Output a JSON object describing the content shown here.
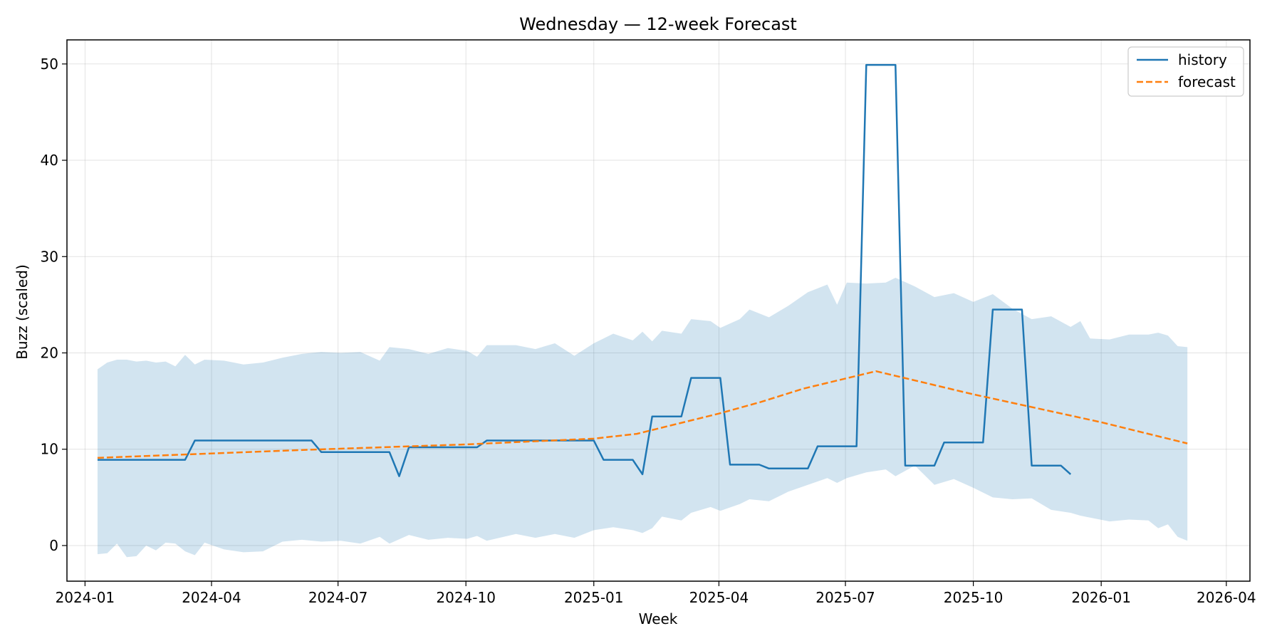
{
  "chart_data": {
    "type": "line",
    "title": "Wednesday — 12-week Forecast",
    "xlabel": "Week",
    "ylabel": "Buzz (scaled)",
    "x_axis": {
      "type": "date",
      "range": [
        "2023-12-19",
        "2026-04-18"
      ],
      "ticks": [
        "2024-01-01",
        "2024-04-01",
        "2024-07-01",
        "2024-10-01",
        "2025-01-01",
        "2025-04-01",
        "2025-07-01",
        "2025-10-01",
        "2026-01-01",
        "2026-04-01"
      ],
      "tick_labels": [
        "2024-01",
        "2024-04",
        "2024-07",
        "2024-10",
        "2025-01",
        "2025-04",
        "2025-07",
        "2025-10",
        "2026-01",
        "2026-04"
      ]
    },
    "y_axis": {
      "range": [
        -3.7,
        52.5
      ],
      "ticks": [
        0,
        10,
        20,
        30,
        40,
        50
      ],
      "tick_labels": [
        "0",
        "10",
        "20",
        "30",
        "40",
        "50"
      ]
    },
    "grid": true,
    "legend_position": "top-right",
    "series": [
      {
        "name": "history",
        "style": "solid",
        "color": "#1f77b4",
        "points": [
          {
            "x": "2024-01-10",
            "y": 8.9
          },
          {
            "x": "2024-03-13",
            "y": 8.9
          },
          {
            "x": "2024-03-20",
            "y": 10.9
          },
          {
            "x": "2024-06-12",
            "y": 10.9
          },
          {
            "x": "2024-06-19",
            "y": 9.7
          },
          {
            "x": "2024-08-07",
            "y": 9.7
          },
          {
            "x": "2024-08-14",
            "y": 7.2
          },
          {
            "x": "2024-08-21",
            "y": 10.2
          },
          {
            "x": "2024-10-09",
            "y": 10.2
          },
          {
            "x": "2024-10-16",
            "y": 10.9
          },
          {
            "x": "2025-01-01",
            "y": 10.9
          },
          {
            "x": "2025-01-08",
            "y": 8.9
          },
          {
            "x": "2025-01-29",
            "y": 8.9
          },
          {
            "x": "2025-02-05",
            "y": 7.4
          },
          {
            "x": "2025-02-12",
            "y": 13.4
          },
          {
            "x": "2025-03-05",
            "y": 13.4
          },
          {
            "x": "2025-03-12",
            "y": 17.4
          },
          {
            "x": "2025-04-02",
            "y": 17.4
          },
          {
            "x": "2025-04-09",
            "y": 8.4
          },
          {
            "x": "2025-04-30",
            "y": 8.4
          },
          {
            "x": "2025-05-07",
            "y": 8.0
          },
          {
            "x": "2025-06-04",
            "y": 8.0
          },
          {
            "x": "2025-06-11",
            "y": 10.3
          },
          {
            "x": "2025-07-09",
            "y": 10.3
          },
          {
            "x": "2025-07-16",
            "y": 49.9
          },
          {
            "x": "2025-08-06",
            "y": 49.9
          },
          {
            "x": "2025-08-13",
            "y": 8.3
          },
          {
            "x": "2025-09-03",
            "y": 8.3
          },
          {
            "x": "2025-09-10",
            "y": 10.7
          },
          {
            "x": "2025-10-08",
            "y": 10.7
          },
          {
            "x": "2025-10-15",
            "y": 24.5
          },
          {
            "x": "2025-11-05",
            "y": 24.5
          },
          {
            "x": "2025-11-12",
            "y": 8.3
          },
          {
            "x": "2025-12-03",
            "y": 8.3
          },
          {
            "x": "2025-12-10",
            "y": 7.4
          }
        ]
      },
      {
        "name": "forecast",
        "style": "dashed",
        "color": "#ff7f0e",
        "points": [
          {
            "x": "2024-01-10",
            "y": 9.1
          },
          {
            "x": "2024-06-01",
            "y": 9.9
          },
          {
            "x": "2024-10-01",
            "y": 10.5
          },
          {
            "x": "2025-01-01",
            "y": 11.1
          },
          {
            "x": "2025-02-01",
            "y": 11.6
          },
          {
            "x": "2025-03-01",
            "y": 12.6
          },
          {
            "x": "2025-04-01",
            "y": 13.7
          },
          {
            "x": "2025-05-01",
            "y": 14.9
          },
          {
            "x": "2025-06-01",
            "y": 16.3
          },
          {
            "x": "2025-07-23",
            "y": 18.1
          },
          {
            "x": "2025-10-01",
            "y": 15.7
          },
          {
            "x": "2026-01-01",
            "y": 12.8
          },
          {
            "x": "2026-03-04",
            "y": 10.6
          }
        ]
      }
    ],
    "band": {
      "color": "#1f77b4",
      "points": [
        {
          "x": "2024-01-10",
          "lo": -0.9,
          "hi": 18.3
        },
        {
          "x": "2024-01-17",
          "lo": -0.8,
          "hi": 19.0
        },
        {
          "x": "2024-01-24",
          "lo": 0.2,
          "hi": 19.3
        },
        {
          "x": "2024-01-31",
          "lo": -1.2,
          "hi": 19.3
        },
        {
          "x": "2024-02-07",
          "lo": -1.1,
          "hi": 19.1
        },
        {
          "x": "2024-02-14",
          "lo": 0.0,
          "hi": 19.2
        },
        {
          "x": "2024-02-21",
          "lo": -0.5,
          "hi": 19.0
        },
        {
          "x": "2024-02-28",
          "lo": 0.3,
          "hi": 19.1
        },
        {
          "x": "2024-03-06",
          "lo": 0.2,
          "hi": 18.6
        },
        {
          "x": "2024-03-13",
          "lo": -0.6,
          "hi": 19.8
        },
        {
          "x": "2024-03-20",
          "lo": -1.0,
          "hi": 18.8
        },
        {
          "x": "2024-03-27",
          "lo": 0.3,
          "hi": 19.3
        },
        {
          "x": "2024-04-10",
          "lo": -0.4,
          "hi": 19.2
        },
        {
          "x": "2024-04-24",
          "lo": -0.7,
          "hi": 18.8
        },
        {
          "x": "2024-05-08",
          "lo": -0.6,
          "hi": 19.0
        },
        {
          "x": "2024-05-22",
          "lo": 0.4,
          "hi": 19.5
        },
        {
          "x": "2024-06-05",
          "lo": 0.6,
          "hi": 19.9
        },
        {
          "x": "2024-06-19",
          "lo": 0.4,
          "hi": 20.1
        },
        {
          "x": "2024-07-03",
          "lo": 0.5,
          "hi": 20.0
        },
        {
          "x": "2024-07-17",
          "lo": 0.2,
          "hi": 20.1
        },
        {
          "x": "2024-07-31",
          "lo": 0.9,
          "hi": 19.2
        },
        {
          "x": "2024-08-07",
          "lo": 0.2,
          "hi": 20.6
        },
        {
          "x": "2024-08-21",
          "lo": 1.1,
          "hi": 20.4
        },
        {
          "x": "2024-09-04",
          "lo": 0.6,
          "hi": 19.9
        },
        {
          "x": "2024-09-18",
          "lo": 0.8,
          "hi": 20.5
        },
        {
          "x": "2024-10-02",
          "lo": 0.7,
          "hi": 20.2
        },
        {
          "x": "2024-10-09",
          "lo": 1.0,
          "hi": 19.6
        },
        {
          "x": "2024-10-16",
          "lo": 0.5,
          "hi": 20.8
        },
        {
          "x": "2024-11-06",
          "lo": 1.2,
          "hi": 20.8
        },
        {
          "x": "2024-11-20",
          "lo": 0.8,
          "hi": 20.4
        },
        {
          "x": "2024-12-04",
          "lo": 1.2,
          "hi": 21.0
        },
        {
          "x": "2024-12-18",
          "lo": 0.8,
          "hi": 19.7
        },
        {
          "x": "2025-01-01",
          "lo": 1.6,
          "hi": 21.0
        },
        {
          "x": "2025-01-15",
          "lo": 1.9,
          "hi": 22.0
        },
        {
          "x": "2025-01-29",
          "lo": 1.6,
          "hi": 21.3
        },
        {
          "x": "2025-02-05",
          "lo": 1.3,
          "hi": 22.2
        },
        {
          "x": "2025-02-12",
          "lo": 1.8,
          "hi": 21.2
        },
        {
          "x": "2025-02-19",
          "lo": 3.0,
          "hi": 22.3
        },
        {
          "x": "2025-03-05",
          "lo": 2.6,
          "hi": 22.0
        },
        {
          "x": "2025-03-12",
          "lo": 3.4,
          "hi": 23.5
        },
        {
          "x": "2025-03-26",
          "lo": 4.0,
          "hi": 23.3
        },
        {
          "x": "2025-04-02",
          "lo": 3.6,
          "hi": 22.6
        },
        {
          "x": "2025-04-16",
          "lo": 4.3,
          "hi": 23.5
        },
        {
          "x": "2025-04-23",
          "lo": 4.8,
          "hi": 24.5
        },
        {
          "x": "2025-05-07",
          "lo": 4.6,
          "hi": 23.7
        },
        {
          "x": "2025-05-21",
          "lo": 5.6,
          "hi": 24.9
        },
        {
          "x": "2025-06-04",
          "lo": 6.3,
          "hi": 26.3
        },
        {
          "x": "2025-06-18",
          "lo": 7.0,
          "hi": 27.1
        },
        {
          "x": "2025-06-25",
          "lo": 6.5,
          "hi": 25.0
        },
        {
          "x": "2025-07-02",
          "lo": 7.0,
          "hi": 27.3
        },
        {
          "x": "2025-07-16",
          "lo": 7.6,
          "hi": 27.2
        },
        {
          "x": "2025-07-30",
          "lo": 7.9,
          "hi": 27.3
        },
        {
          "x": "2025-08-06",
          "lo": 7.2,
          "hi": 27.8
        },
        {
          "x": "2025-08-20",
          "lo": 8.3,
          "hi": 26.9
        },
        {
          "x": "2025-09-03",
          "lo": 6.3,
          "hi": 25.8
        },
        {
          "x": "2025-09-17",
          "lo": 6.9,
          "hi": 26.2
        },
        {
          "x": "2025-10-01",
          "lo": 6.0,
          "hi": 25.3
        },
        {
          "x": "2025-10-15",
          "lo": 5.0,
          "hi": 26.1
        },
        {
          "x": "2025-10-29",
          "lo": 4.8,
          "hi": 24.6
        },
        {
          "x": "2025-11-12",
          "lo": 4.9,
          "hi": 23.5
        },
        {
          "x": "2025-11-26",
          "lo": 3.7,
          "hi": 23.8
        },
        {
          "x": "2025-12-10",
          "lo": 3.4,
          "hi": 22.7
        },
        {
          "x": "2025-12-17",
          "lo": 3.1,
          "hi": 23.3
        },
        {
          "x": "2025-12-24",
          "lo": 2.9,
          "hi": 21.5
        },
        {
          "x": "2026-01-07",
          "lo": 2.5,
          "hi": 21.4
        },
        {
          "x": "2026-01-21",
          "lo": 2.7,
          "hi": 21.9
        },
        {
          "x": "2026-02-04",
          "lo": 2.6,
          "hi": 21.9
        },
        {
          "x": "2026-02-11",
          "lo": 1.8,
          "hi": 22.1
        },
        {
          "x": "2026-02-18",
          "lo": 2.2,
          "hi": 21.8
        },
        {
          "x": "2026-02-25",
          "lo": 0.9,
          "hi": 20.7
        },
        {
          "x": "2026-03-04",
          "lo": 0.5,
          "hi": 20.6
        }
      ]
    }
  }
}
